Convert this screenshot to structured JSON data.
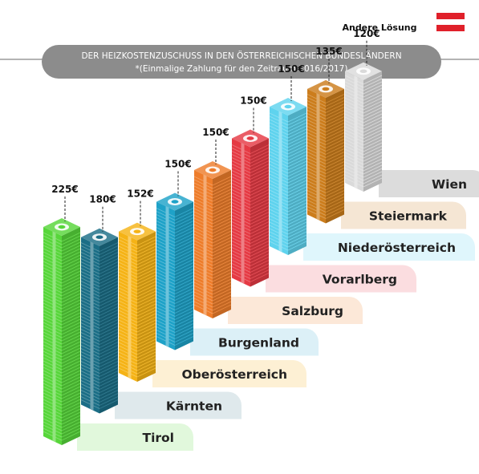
{
  "header": {
    "title": "DER HEIZKOSTENZUSCHUSS IN DEN ÖSTERREICHISCHEN BUNDESLÄNDERN",
    "subtitle": "*(Einmalige Zahlung für den Zeitraum 2016/2017)"
  },
  "flag": {
    "colors": [
      "#e0202a",
      "#ffffff",
      "#e0202a"
    ]
  },
  "chart_data": {
    "type": "bar",
    "title": "DER HEIZKOSTENZUSCHUSS IN DEN ÖSTERREICHISCHEN BUNDESLÄNDERN",
    "subtitle": "*(Einmalige Zahlung für den Zeitraum 2016/2017)",
    "unit": "€",
    "categories": [
      "Tirol",
      "Kärnten",
      "Oberösterreich",
      "Burgenland",
      "Salzburg",
      "Vorarlberg",
      "Niederösterreich",
      "Steiermark",
      "Wien"
    ],
    "values": [
      225,
      180,
      152,
      150,
      150,
      150,
      150,
      135,
      120
    ],
    "value_labels": [
      "225€",
      "180€",
      "152€",
      "150€",
      "150€",
      "150€",
      "150€",
      "135€",
      "120€"
    ],
    "annotations": [
      {
        "category": "Wien",
        "text": "Andere Lösung"
      }
    ],
    "colors": [
      "#57d63a",
      "#1b6e86",
      "#f5b316",
      "#1ea2c8",
      "#ee7d2b",
      "#e53a44",
      "#5fd3ee",
      "#cc7d1c",
      "#dadada"
    ],
    "label_bg_colors": [
      "#e1f8dc",
      "#dfe9ec",
      "#fdf0d4",
      "#dcf0f7",
      "#fce8d8",
      "#fbdde0",
      "#dff6fc",
      "#f5e6d4",
      "#dcdcdc"
    ]
  }
}
